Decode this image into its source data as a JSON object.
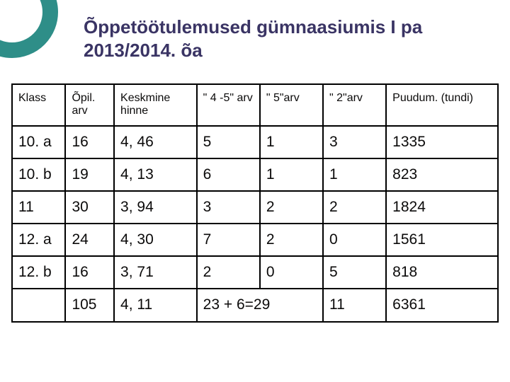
{
  "title": "Õppetöötulemused gümnaasiumis I pa 2013/2014. õa",
  "title_color": "#3a3464",
  "title_fontsize": 26,
  "accent_circle": {
    "ring_color": "#2e8e88",
    "fill": "#ffffff"
  },
  "table": {
    "col_widths_pct": [
      11,
      10,
      17,
      13,
      13,
      13,
      23
    ],
    "headers": [
      "Klass",
      "Õpil. arv",
      "Keskmine hinne",
      "\" 4 -5\" arv",
      "\" 5\"arv",
      "\" 2\"arv",
      "Puudum. (tundi)"
    ],
    "header_fontsize": 16,
    "body_fontsize": 21,
    "rows": [
      [
        "10. a",
        "16",
        "4, 46",
        "5",
        "1",
        "3",
        "1335"
      ],
      [
        "10. b",
        "19",
        "4, 13",
        "6",
        "1",
        "1",
        "823"
      ],
      [
        "11",
        "30",
        "3, 94",
        "3",
        "2",
        "2",
        "1824"
      ],
      [
        "12. a",
        "24",
        "4, 30",
        "7",
        "2",
        "0",
        "1561"
      ],
      [
        "12. b",
        "16",
        "3, 71",
        "2",
        "0",
        "5",
        "818"
      ]
    ],
    "summary": {
      "blank": "",
      "total_students": "105",
      "avg": "4, 11",
      "good_sum": "23  +  6=29",
      "twos": "11",
      "absences": "6361"
    },
    "border_color": "#000000"
  }
}
